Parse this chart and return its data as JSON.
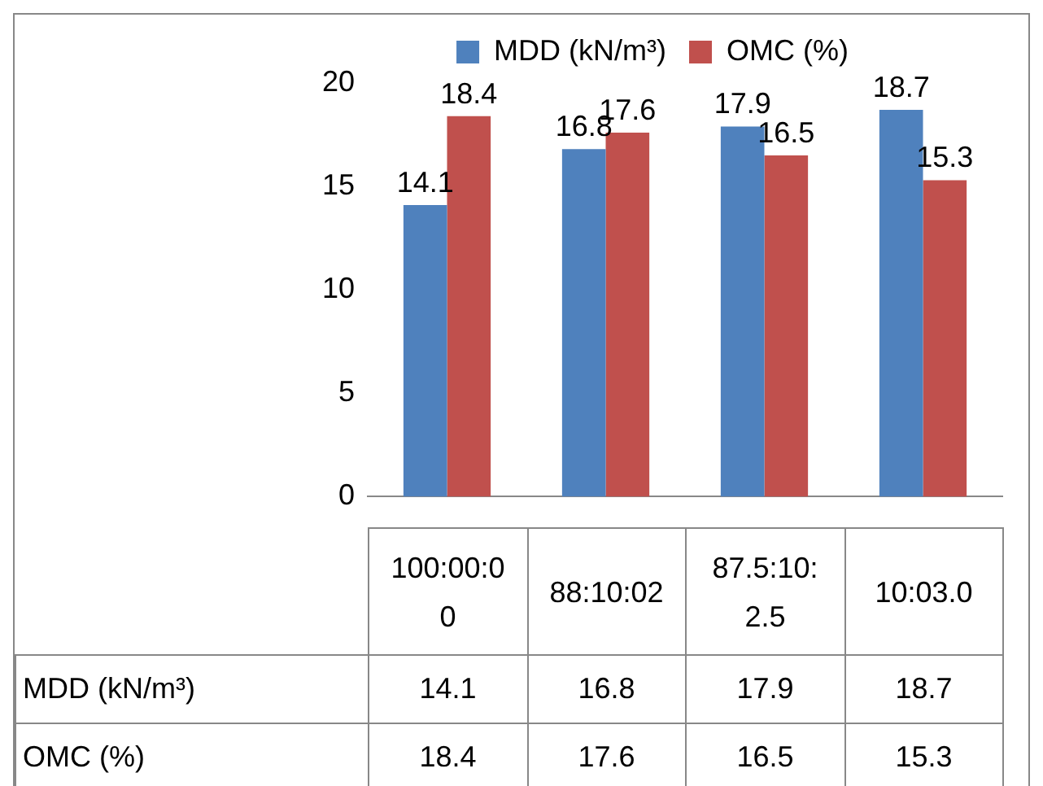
{
  "chart_data": {
    "type": "bar",
    "categories": [
      "100:00:00",
      "88:10:02",
      "87.5:10:2.5",
      "10:03.0"
    ],
    "series": [
      {
        "name": "MDD (kN/m³)",
        "color": "#4f81bd",
        "values": [
          14.1,
          16.8,
          17.9,
          18.7
        ],
        "value_labels": [
          "14.1",
          "16.8",
          "17.9",
          "18.7"
        ]
      },
      {
        "name": "OMC (%)",
        "color": "#c0504d",
        "values": [
          18.4,
          17.6,
          16.5,
          15.3
        ],
        "value_labels": [
          "18.4",
          "17.6",
          "16.5",
          "15.3"
        ]
      }
    ],
    "ylim": [
      0,
      20
    ],
    "yticks": [
      0,
      5,
      10,
      15,
      20
    ],
    "grid": false,
    "legend": "top",
    "annotations": [
      "14.1",
      "16.8",
      "17.9",
      "18.7",
      "18.4",
      "17.6",
      "16.5",
      "15.3"
    ]
  }
}
